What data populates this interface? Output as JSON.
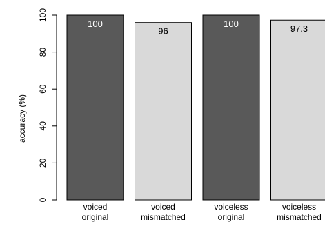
{
  "chart_data": {
    "type": "bar",
    "categories": [
      [
        "voiced",
        "original"
      ],
      [
        "voiced",
        "mismatched"
      ],
      [
        "voiceless",
        "original"
      ],
      [
        "voiceless",
        "mismatched"
      ]
    ],
    "values": [
      100,
      96,
      100,
      97.3
    ],
    "data_labels": [
      "100",
      "96",
      "100",
      "97.3"
    ],
    "bar_colors": [
      "#595959",
      "#d9d9d9",
      "#595959",
      "#d9d9d9"
    ],
    "label_colors": [
      "#ffffff",
      "#000000",
      "#ffffff",
      "#000000"
    ],
    "ylabel": "accuracy (%)",
    "yticks": [
      0,
      20,
      40,
      60,
      80,
      100
    ],
    "ylim": [
      0,
      100
    ],
    "grid": false,
    "legend": "none"
  }
}
